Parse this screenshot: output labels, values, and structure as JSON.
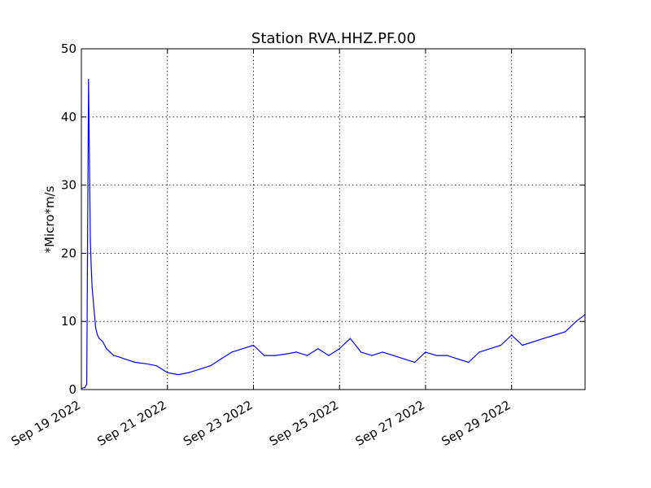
{
  "chart_data": {
    "type": "line",
    "title": "Station RVA.HHZ.PF.00",
    "xlabel": "",
    "ylabel": "*Micro*m/s",
    "xlim": [
      "2022-09-19",
      "2022-09-30 17:00"
    ],
    "ylim": [
      0,
      50
    ],
    "grid": true,
    "x_ticks": [
      "Sep 19 2022",
      "Sep 21 2022",
      "Sep 23 2022",
      "Sep 25 2022",
      "Sep 27 2022",
      "Sep 29 2022"
    ],
    "y_ticks": [
      "0",
      "10",
      "20",
      "30",
      "40",
      "50"
    ],
    "series": [
      {
        "name": "",
        "color": "#0000ff",
        "x": [
          "2022-09-19 00:00",
          "2022-09-19 02:00",
          "2022-09-19 03:00",
          "2022-09-19 04:00",
          "2022-09-19 05:00",
          "2022-09-19 05:30",
          "2022-09-19 06:00",
          "2022-09-19 07:00",
          "2022-09-19 08:00",
          "2022-09-19 09:00",
          "2022-09-19 10:00",
          "2022-09-19 12:00",
          "2022-09-19 14:00",
          "2022-09-19 16:00",
          "2022-09-19 18:00",
          "2022-09-19 21:00",
          "2022-09-20 00:00",
          "2022-09-20 06:00",
          "2022-09-20 12:00",
          "2022-09-20 18:00",
          "2022-09-21 00:00",
          "2022-09-21 06:00",
          "2022-09-21 12:00",
          "2022-09-21 18:00",
          "2022-09-22 00:00",
          "2022-09-22 06:00",
          "2022-09-22 12:00",
          "2022-09-22 18:00",
          "2022-09-23 00:00",
          "2022-09-23 06:00",
          "2022-09-23 12:00",
          "2022-09-23 18:00",
          "2022-09-24 00:00",
          "2022-09-24 06:00",
          "2022-09-24 12:00",
          "2022-09-24 18:00",
          "2022-09-25 00:00",
          "2022-09-25 06:00",
          "2022-09-25 12:00",
          "2022-09-25 18:00",
          "2022-09-26 00:00",
          "2022-09-26 06:00",
          "2022-09-26 12:00",
          "2022-09-26 18:00",
          "2022-09-27 00:00",
          "2022-09-27 06:00",
          "2022-09-27 12:00",
          "2022-09-27 18:00",
          "2022-09-28 00:00",
          "2022-09-28 06:00",
          "2022-09-28 12:00",
          "2022-09-28 18:00",
          "2022-09-29 00:00",
          "2022-09-29 06:00",
          "2022-09-29 12:00",
          "2022-09-29 18:00",
          "2022-09-30 00:00",
          "2022-09-30 06:00",
          "2022-09-30 12:00",
          "2022-09-30 17:00"
        ],
        "y": [
          0.2,
          0.3,
          0.8,
          45.5,
          22.0,
          18.0,
          15.0,
          12.0,
          9.0,
          8.0,
          7.5,
          7.0,
          6.0,
          5.5,
          5.0,
          4.8,
          4.5,
          4.0,
          3.8,
          3.5,
          2.5,
          2.2,
          2.5,
          3.0,
          3.5,
          4.5,
          5.5,
          6.0,
          6.5,
          5.0,
          5.0,
          5.2,
          5.5,
          5.0,
          6.0,
          5.0,
          6.0,
          7.5,
          5.5,
          5.0,
          5.5,
          5.0,
          4.5,
          4.0,
          5.5,
          5.0,
          5.0,
          4.5,
          4.0,
          5.5,
          6.0,
          6.5,
          8.0,
          6.5,
          7.0,
          7.5,
          8.0,
          8.5,
          10.0,
          11.0
        ]
      }
    ]
  }
}
